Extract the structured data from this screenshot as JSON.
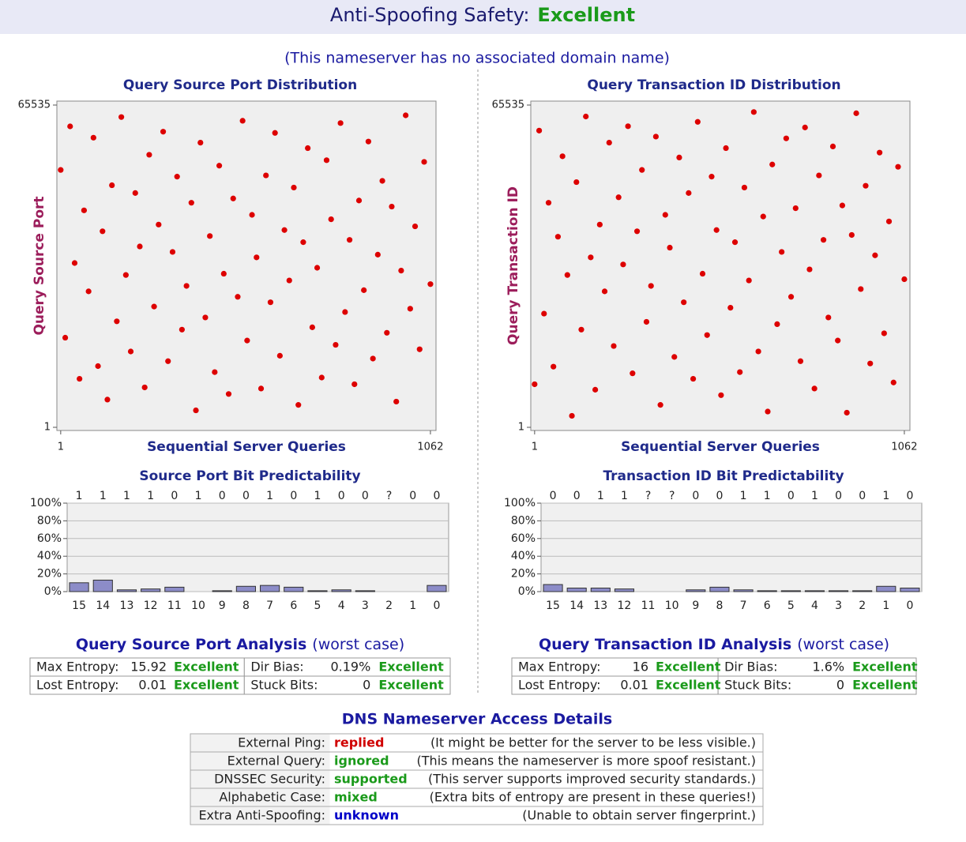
{
  "header": {
    "title": "Anti-Spoofing Safety:",
    "rating": "Excellent",
    "subtitle": "(This nameserver has no associated domain name)"
  },
  "chart_data": [
    {
      "type": "scatter",
      "title": "Query Source Port Distribution",
      "x_label": "Sequential Server Queries",
      "y_label": "Query Source Port",
      "color": "#dd0000",
      "x": [
        1,
        14,
        28,
        41,
        55,
        68,
        81,
        95,
        108,
        121,
        135,
        148,
        162,
        175,
        188,
        202,
        215,
        228,
        242,
        255,
        269,
        282,
        295,
        309,
        322,
        335,
        349,
        362,
        376,
        389,
        402,
        416,
        429,
        443,
        456,
        469,
        483,
        496,
        509,
        523,
        536,
        550,
        563,
        576,
        590,
        603,
        616,
        630,
        643,
        657,
        670,
        683,
        697,
        710,
        723,
        737,
        750,
        764,
        777,
        790,
        804,
        817,
        830,
        844,
        857,
        871,
        884,
        897,
        911,
        924,
        937,
        951,
        964,
        978,
        991,
        1004,
        1018,
        1031,
        1044,
        1062
      ],
      "values": [
        52340,
        18230,
        61200,
        33410,
        9870,
        44120,
        27650,
        58900,
        12450,
        39870,
        5640,
        49230,
        21560,
        63100,
        30980,
        15420,
        47650,
        36780,
        8120,
        55430,
        24560,
        41230,
        60120,
        13450,
        35670,
        50980,
        19870,
        28760,
        45670,
        3450,
        57890,
        22340,
        38900,
        11230,
        53210,
        31240,
        6780,
        46540,
        26540,
        62340,
        17650,
        43210,
        34560,
        7890,
        51230,
        25430,
        59870,
        14560,
        40120,
        29870,
        48760,
        4560,
        37650,
        56780,
        20340,
        32450,
        10120,
        54320,
        42310,
        16780,
        61870,
        23450,
        38120,
        8760,
        46120,
        27890,
        58120,
        13980,
        35120,
        50120,
        19230,
        44890,
        5230,
        31870,
        63450,
        24120,
        40870,
        15870,
        53980,
        29120
      ],
      "xlim": [
        -10,
        1078
      ],
      "ylim": [
        -640,
        66340
      ],
      "xticks": [
        1,
        1062
      ],
      "yticks": [
        1,
        65535
      ]
    },
    {
      "type": "scatter",
      "title": "Query Transaction ID Distribution",
      "x_label": "Sequential Server Queries",
      "y_label": "Query Transaction ID",
      "color": "#dd0000",
      "x": [
        1,
        14,
        28,
        41,
        55,
        68,
        81,
        95,
        108,
        121,
        135,
        148,
        162,
        175,
        188,
        202,
        215,
        228,
        242,
        255,
        269,
        282,
        295,
        309,
        322,
        335,
        349,
        362,
        376,
        389,
        402,
        416,
        429,
        443,
        456,
        469,
        483,
        496,
        509,
        523,
        536,
        550,
        563,
        576,
        590,
        603,
        616,
        630,
        643,
        657,
        670,
        683,
        697,
        710,
        723,
        737,
        750,
        764,
        777,
        790,
        804,
        817,
        830,
        844,
        857,
        871,
        884,
        897,
        911,
        924,
        937,
        951,
        964,
        978,
        991,
        1004,
        1018,
        1031,
        1044,
        1062
      ],
      "values": [
        8760,
        60340,
        23120,
        45670,
        12340,
        38760,
        55120,
        30980,
        2340,
        49870,
        19870,
        63210,
        34560,
        7650,
        41230,
        27650,
        57890,
        16540,
        46780,
        33120,
        61230,
        10980,
        39870,
        52340,
        21450,
        28760,
        59120,
        4560,
        43210,
        36540,
        14320,
        54870,
        25430,
        47650,
        9870,
        62120,
        31240,
        18760,
        50980,
        40120,
        6540,
        56780,
        24320,
        37650,
        11230,
        48760,
        29870,
        64120,
        15430,
        42870,
        3210,
        53450,
        20980,
        35670,
        58760,
        26540,
        44560,
        13450,
        60980,
        32120,
        7890,
        51230,
        38120,
        22340,
        57120,
        17650,
        45120,
        2980,
        39120,
        63870,
        28120,
        49120,
        12980,
        34980,
        55870,
        19120,
        41870,
        9120,
        52980,
        30120
      ],
      "xlim": [
        -10,
        1078
      ],
      "ylim": [
        -640,
        66340
      ],
      "xticks": [
        1,
        1062
      ],
      "yticks": [
        1,
        65535
      ]
    },
    {
      "type": "bar",
      "title": "Source Port Bit Predictability",
      "color": "#8c8cc8",
      "grid": true,
      "categories": [
        "15",
        "14",
        "13",
        "12",
        "11",
        "10",
        "9",
        "8",
        "7",
        "6",
        "5",
        "4",
        "3",
        "2",
        "1",
        "0"
      ],
      "top_labels": [
        "1",
        "1",
        "1",
        "1",
        "0",
        "1",
        "0",
        "0",
        "1",
        "0",
        "1",
        "0",
        "0",
        "?",
        "0",
        "0"
      ],
      "values": [
        10,
        13,
        2,
        3,
        5,
        0,
        1,
        6,
        7,
        5,
        1,
        2,
        1,
        0,
        0,
        7
      ],
      "ylim": [
        0,
        100
      ],
      "yticks": [
        {
          "value": 0,
          "label": "0%"
        },
        {
          "value": 20,
          "label": "20%"
        },
        {
          "value": 40,
          "label": "40%"
        },
        {
          "value": 60,
          "label": "60%"
        },
        {
          "value": 80,
          "label": "80%"
        },
        {
          "value": 100,
          "label": "100%"
        }
      ]
    },
    {
      "type": "bar",
      "title": "Transaction ID Bit Predictability",
      "color": "#8c8cc8",
      "grid": true,
      "categories": [
        "15",
        "14",
        "13",
        "12",
        "11",
        "10",
        "9",
        "8",
        "7",
        "6",
        "5",
        "4",
        "3",
        "2",
        "1",
        "0"
      ],
      "top_labels": [
        "0",
        "0",
        "1",
        "1",
        "?",
        "?",
        "0",
        "0",
        "1",
        "1",
        "0",
        "1",
        "0",
        "0",
        "1",
        "0"
      ],
      "values": [
        8,
        4,
        4,
        3,
        0,
        0,
        2,
        5,
        2,
        1,
        1,
        1,
        1,
        1,
        6,
        4
      ],
      "ylim": [
        0,
        100
      ],
      "yticks": [
        {
          "value": 0,
          "label": "0%"
        },
        {
          "value": 20,
          "label": "20%"
        },
        {
          "value": 40,
          "label": "40%"
        },
        {
          "value": 60,
          "label": "60%"
        },
        {
          "value": 80,
          "label": "80%"
        },
        {
          "value": 100,
          "label": "100%"
        }
      ]
    }
  ],
  "analysis": [
    {
      "title": "Query Source Port Analysis",
      "note": "(worst case)",
      "rows": [
        [
          "Max Entropy:",
          "15.92",
          "Excellent",
          "Dir Bias:",
          "0.19%",
          "Excellent"
        ],
        [
          "Lost Entropy:",
          "0.01",
          "Excellent",
          "Stuck Bits:",
          "0",
          "Excellent"
        ]
      ]
    },
    {
      "title": "Query Transaction ID Analysis",
      "note": "(worst case)",
      "rows": [
        [
          "Max Entropy:",
          "16",
          "Excellent",
          "Dir Bias:",
          "1.6%",
          "Excellent"
        ],
        [
          "Lost Entropy:",
          "0.01",
          "Excellent",
          "Stuck Bits:",
          "0",
          "Excellent"
        ]
      ]
    }
  ],
  "access": {
    "title": "DNS Nameserver Access Details",
    "rows": [
      {
        "label": "External Ping:",
        "status": "replied",
        "color": "#d00000",
        "note": "(It might be better for the server to be less visible.)"
      },
      {
        "label": "External Query:",
        "status": "ignored",
        "color": "#1a9a1a",
        "note": "(This means the nameserver is more spoof resistant.)"
      },
      {
        "label": "DNSSEC Security:",
        "status": "supported",
        "color": "#1a9a1a",
        "note": "(This server supports improved security standards.)"
      },
      {
        "label": "Alphabetic Case:",
        "status": "mixed",
        "color": "#1a9a1a",
        "note": "(Extra bits of entropy are present in these queries!)"
      },
      {
        "label": "Extra Anti-Spoofing:",
        "status": "unknown",
        "color": "#0000c8",
        "note": "(Unable to obtain server fingerprint.)"
      }
    ]
  }
}
